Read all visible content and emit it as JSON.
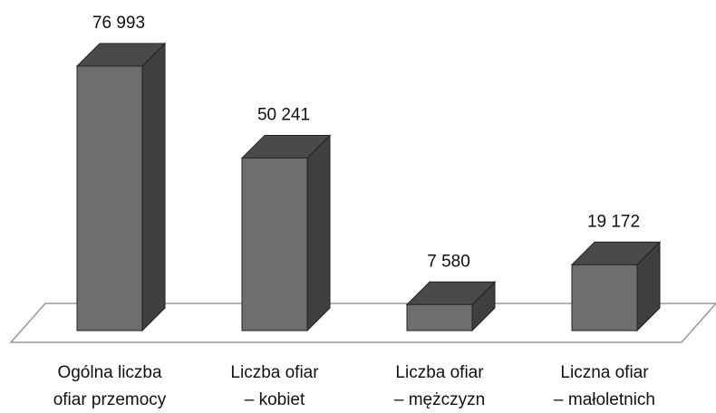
{
  "chart_data": {
    "type": "bar3d",
    "categories": [
      [
        "Ogólna liczba",
        "ofiar przemocy"
      ],
      [
        "Liczba ofiar",
        "– kobiet"
      ],
      [
        "Liczba ofiar",
        "– mężczyzn"
      ],
      [
        "Liczna ofiar",
        "– małoletnich"
      ]
    ],
    "values": [
      76993,
      50241,
      7580,
      19172
    ],
    "value_labels": [
      "76 993",
      "50 241",
      "7 580",
      "19 172"
    ],
    "color": "#6e6e6e"
  }
}
